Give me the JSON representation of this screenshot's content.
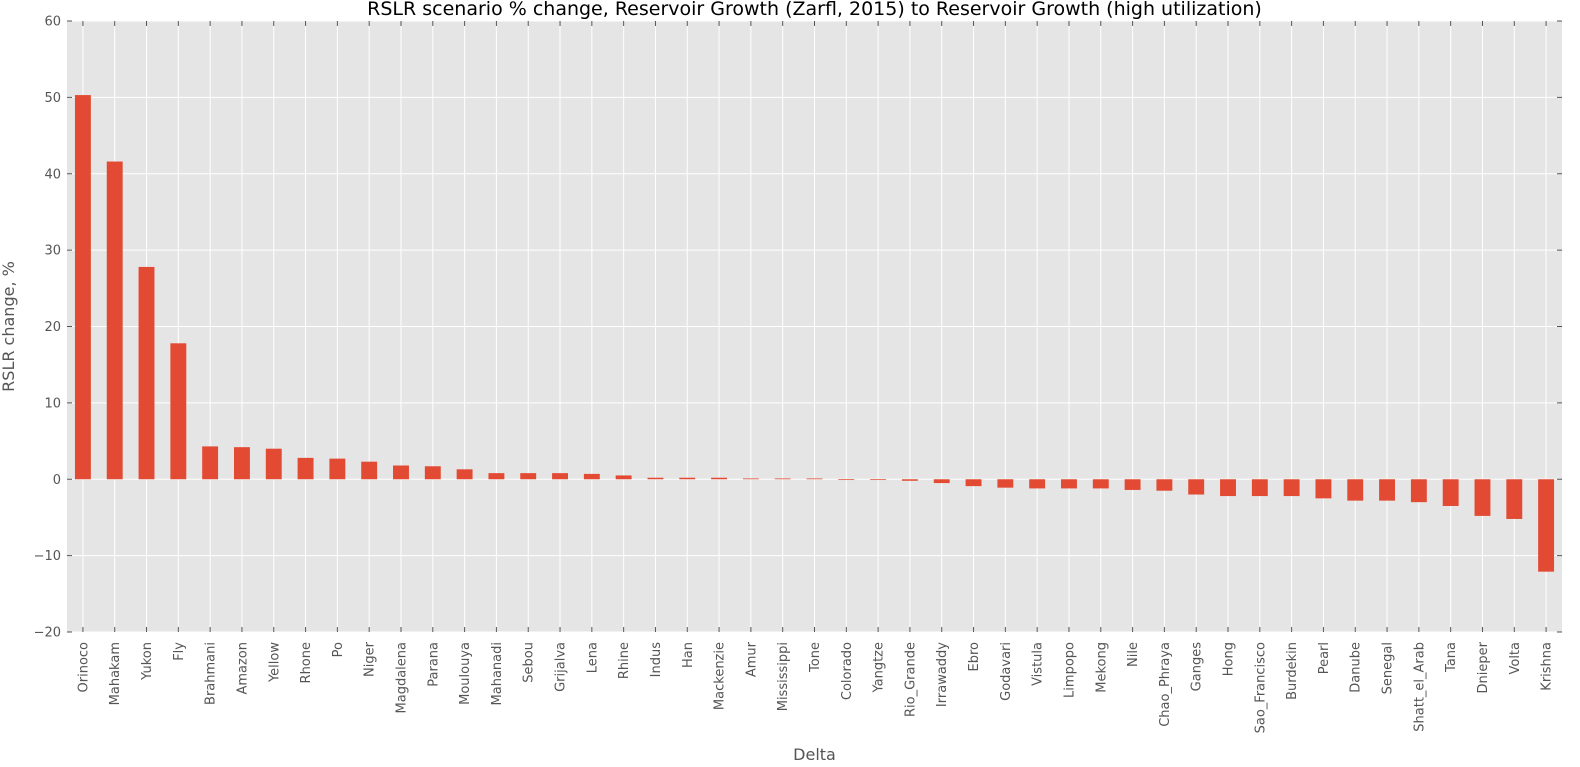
{
  "chart_data": {
    "type": "bar",
    "title": "RSLR scenario % change, Reservoir Growth (Zarfl, 2015) to Reservoir Growth (high utilization)",
    "xlabel": "Delta",
    "ylabel": "RSLR change, %",
    "ylim": [
      -20,
      60
    ],
    "yticks": [
      -20,
      -10,
      0,
      10,
      20,
      30,
      40,
      50,
      60
    ],
    "grid": true,
    "bar_color": "#E24A33",
    "plot_background": "#E5E5E5",
    "grid_color": "#FFFFFF",
    "categories": [
      "Orinoco",
      "Mahakam",
      "Yukon",
      "Fly",
      "Brahmani",
      "Amazon",
      "Yellow",
      "Rhone",
      "Po",
      "Niger",
      "Magdalena",
      "Parana",
      "Moulouya",
      "Mahanadi",
      "Sebou",
      "Grijalva",
      "Lena",
      "Rhine",
      "Indus",
      "Han",
      "Mackenzie",
      "Amur",
      "Mississippi",
      "Tone",
      "Colorado",
      "Yangtze",
      "Rio_Grande",
      "Irrawaddy",
      "Ebro",
      "Godavari",
      "Vistula",
      "Limpopo",
      "Mekong",
      "Nile",
      "Chao_Phraya",
      "Ganges",
      "Hong",
      "Sao_Francisco",
      "Burdekin",
      "Pearl",
      "Danube",
      "Senegal",
      "Shatt_el_Arab",
      "Tana",
      "Dnieper",
      "Volta",
      "Krishna"
    ],
    "values": [
      50.3,
      41.6,
      27.8,
      17.8,
      4.3,
      4.2,
      4.0,
      2.8,
      2.7,
      2.3,
      1.8,
      1.7,
      1.3,
      0.8,
      0.8,
      0.8,
      0.7,
      0.5,
      0.2,
      0.2,
      0.2,
      0.1,
      0.1,
      0.1,
      -0.1,
      -0.1,
      -0.2,
      -0.5,
      -0.9,
      -1.1,
      -1.2,
      -1.2,
      -1.2,
      -1.4,
      -1.5,
      -2.0,
      -2.2,
      -2.2,
      -2.2,
      -2.5,
      -2.8,
      -2.8,
      -3.0,
      -3.5,
      -4.8,
      -5.2,
      -12.1
    ]
  }
}
